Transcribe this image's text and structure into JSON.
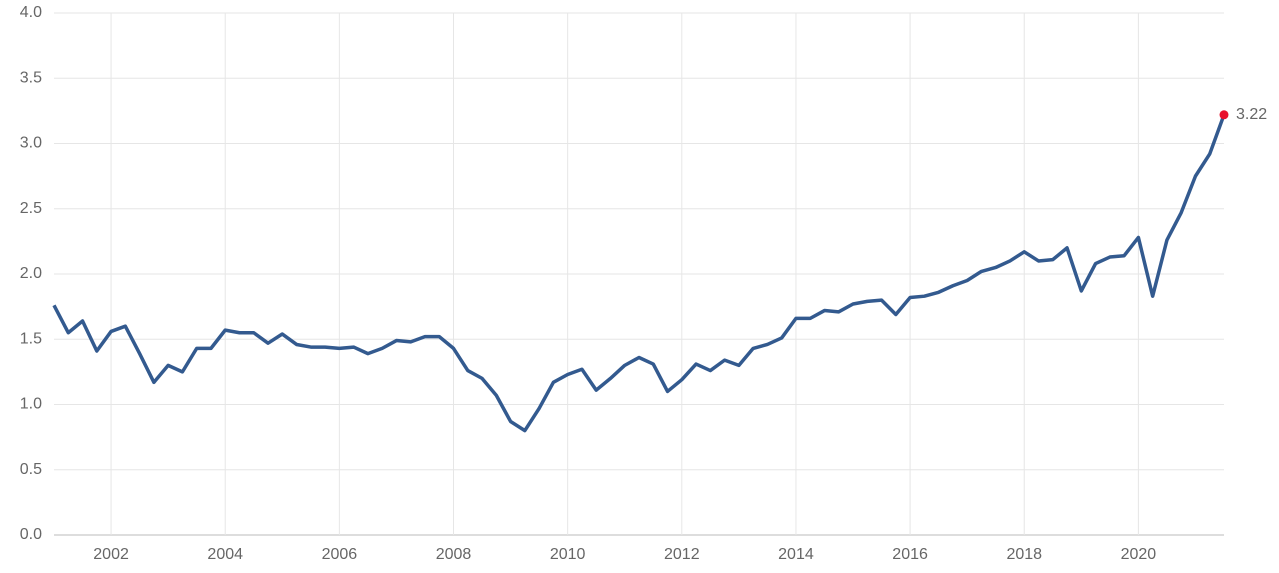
{
  "chart_data": {
    "type": "line",
    "x": [
      2001,
      2001.25,
      2001.5,
      2001.75,
      2002,
      2002.25,
      2002.5,
      2002.75,
      2003,
      2003.25,
      2003.5,
      2003.75,
      2004,
      2004.25,
      2004.5,
      2004.75,
      2005,
      2005.25,
      2005.5,
      2005.75,
      2006,
      2006.25,
      2006.5,
      2006.75,
      2007,
      2007.25,
      2007.5,
      2007.75,
      2008,
      2008.25,
      2008.5,
      2008.75,
      2009,
      2009.25,
      2009.5,
      2009.75,
      2010,
      2010.25,
      2010.5,
      2010.75,
      2011,
      2011.25,
      2011.5,
      2011.75,
      2012,
      2012.25,
      2012.5,
      2012.75,
      2013,
      2013.25,
      2013.5,
      2013.75,
      2014,
      2014.25,
      2014.5,
      2014.75,
      2015,
      2015.25,
      2015.5,
      2015.75,
      2016,
      2016.25,
      2016.5,
      2016.75,
      2017,
      2017.25,
      2017.5,
      2017.75,
      2018,
      2018.25,
      2018.5,
      2018.75,
      2019,
      2019.25,
      2019.5,
      2019.75,
      2020,
      2020.25,
      2020.5,
      2020.75,
      2021,
      2021.25,
      2021.5
    ],
    "series": [
      {
        "color": "#335a8f",
        "highlight_color": "#e8112d",
        "values": [
          1.76,
          1.55,
          1.64,
          1.41,
          1.56,
          1.6,
          1.39,
          1.17,
          1.3,
          1.25,
          1.43,
          1.43,
          1.57,
          1.55,
          1.55,
          1.47,
          1.54,
          1.46,
          1.44,
          1.44,
          1.43,
          1.44,
          1.39,
          1.43,
          1.49,
          1.48,
          1.52,
          1.52,
          1.43,
          1.26,
          1.2,
          1.07,
          0.87,
          0.8,
          0.97,
          1.17,
          1.23,
          1.27,
          1.11,
          1.2,
          1.3,
          1.36,
          1.31,
          1.1,
          1.19,
          1.31,
          1.26,
          1.34,
          1.3,
          1.43,
          1.46,
          1.51,
          1.66,
          1.66,
          1.72,
          1.71,
          1.77,
          1.79,
          1.8,
          1.69,
          1.82,
          1.83,
          1.86,
          1.91,
          1.95,
          2.02,
          2.05,
          2.1,
          2.17,
          2.1,
          2.11,
          2.2,
          1.87,
          2.08,
          2.13,
          2.14,
          2.28,
          1.83,
          2.26,
          2.47,
          2.75,
          2.92,
          3.22
        ]
      }
    ],
    "xlim": [
      2001,
      2021.5
    ],
    "xticks": [
      2002,
      2004,
      2006,
      2008,
      2010,
      2012,
      2014,
      2016,
      2018,
      2020
    ],
    "ylim": [
      0,
      4
    ],
    "yticks": [
      {
        "value": 0,
        "label": "0.0"
      },
      {
        "value": 0.5,
        "label": "0.5"
      },
      {
        "value": 1,
        "label": "1.0"
      },
      {
        "value": 1.5,
        "label": "1.5"
      },
      {
        "value": 2,
        "label": "2.0"
      },
      {
        "value": 2.5,
        "label": "2.5"
      },
      {
        "value": 3,
        "label": "3.0"
      },
      {
        "value": 3.5,
        "label": "3.5"
      },
      {
        "value": 4,
        "label": "4.0"
      }
    ],
    "grid": true
  }
}
